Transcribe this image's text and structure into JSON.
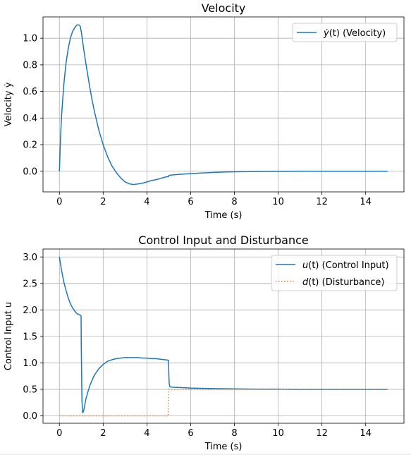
{
  "chart_data": [
    {
      "type": "line",
      "title": "Velocity",
      "xlabel": "Time (s)",
      "ylabel": "Velocity ẏ",
      "xlim": [
        -0.75,
        15.75
      ],
      "ylim": [
        -0.155,
        1.16
      ],
      "xticks": [
        0,
        2,
        4,
        6,
        8,
        10,
        12,
        14
      ],
      "yticks": [
        0.0,
        0.2,
        0.4,
        0.6,
        0.8,
        1.0
      ],
      "ytick_labels": [
        "0.0",
        "0.2",
        "0.4",
        "0.6",
        "0.8",
        "1.0"
      ],
      "grid": true,
      "legend_position": "top-right",
      "series": [
        {
          "name": "ẏ(t) (Velocity)",
          "label_main": "ẏ",
          "label_arg": "(t)",
          "label_rest": " (Velocity)",
          "color": "#1f77b4",
          "style": "solid",
          "x": [
            0,
            0.05,
            0.1,
            0.2,
            0.3,
            0.4,
            0.5,
            0.6,
            0.7,
            0.8,
            0.9,
            0.95,
            1.0,
            1.1,
            1.2,
            1.3,
            1.4,
            1.5,
            1.6,
            1.7,
            1.8,
            2.0,
            2.2,
            2.4,
            2.6,
            2.8,
            3.0,
            3.2,
            3.4,
            3.6,
            3.8,
            4.0,
            4.2,
            4.5,
            4.8,
            4.99,
            5.0,
            5.05,
            5.2,
            5.5,
            6.0,
            6.5,
            7.0,
            7.5,
            8.0,
            9.0,
            10.0,
            11.0,
            12.0,
            13.0,
            14.0,
            15.0
          ],
          "y": [
            0,
            0.25,
            0.42,
            0.65,
            0.81,
            0.92,
            1.0,
            1.05,
            1.08,
            1.1,
            1.1,
            1.09,
            1.05,
            0.93,
            0.82,
            0.72,
            0.62,
            0.53,
            0.45,
            0.38,
            0.31,
            0.2,
            0.11,
            0.04,
            -0.01,
            -0.05,
            -0.08,
            -0.095,
            -0.1,
            -0.095,
            -0.09,
            -0.08,
            -0.07,
            -0.06,
            -0.045,
            -0.04,
            -0.032,
            -0.03,
            -0.027,
            -0.023,
            -0.018,
            -0.013,
            -0.009,
            -0.006,
            -0.004,
            -0.002,
            -0.001,
            0,
            0,
            0,
            0,
            0
          ]
        }
      ]
    },
    {
      "type": "line",
      "title": "Control Input and Disturbance",
      "xlabel": "Time (s)",
      "ylabel": "Control Input u",
      "xlim": [
        -0.75,
        15.75
      ],
      "ylim": [
        -0.14,
        3.15
      ],
      "xticks": [
        0,
        2,
        4,
        6,
        8,
        10,
        12,
        14
      ],
      "yticks": [
        0.0,
        0.5,
        1.0,
        1.5,
        2.0,
        2.5,
        3.0
      ],
      "ytick_labels": [
        "0.0",
        "0.5",
        "1.0",
        "1.5",
        "2.0",
        "2.5",
        "3.0"
      ],
      "grid": true,
      "legend_position": "top-right",
      "series": [
        {
          "name": "u(t) (Control Input)",
          "label_main": "u",
          "label_arg": "(t)",
          "label_rest": " (Control Input)",
          "color": "#1f77b4",
          "style": "solid",
          "x": [
            0,
            0.1,
            0.2,
            0.3,
            0.4,
            0.5,
            0.6,
            0.7,
            0.8,
            0.9,
            0.95,
            0.99,
            1.0,
            1.03,
            1.06,
            1.1,
            1.15,
            1.2,
            1.3,
            1.4,
            1.5,
            1.6,
            1.8,
            2.0,
            2.2,
            2.4,
            2.6,
            2.8,
            3.0,
            3.2,
            3.4,
            3.6,
            3.8,
            4.0,
            4.2,
            4.4,
            4.6,
            4.8,
            4.99,
            5.0,
            5.02,
            5.05,
            5.2,
            5.5,
            6.0,
            6.5,
            7.0,
            8.0,
            9.0,
            10.0,
            11.0,
            12.0,
            13.0,
            14.0,
            15.0
          ],
          "y": [
            3.0,
            2.74,
            2.53,
            2.37,
            2.23,
            2.12,
            2.04,
            1.98,
            1.93,
            1.91,
            1.9,
            1.89,
            1.3,
            0.3,
            0.06,
            0.08,
            0.18,
            0.3,
            0.45,
            0.58,
            0.68,
            0.77,
            0.89,
            0.97,
            1.03,
            1.06,
            1.08,
            1.09,
            1.1,
            1.1,
            1.1,
            1.1,
            1.09,
            1.09,
            1.08,
            1.08,
            1.07,
            1.06,
            1.05,
            0.8,
            0.6,
            0.55,
            0.54,
            0.535,
            0.525,
            0.52,
            0.515,
            0.51,
            0.505,
            0.505,
            0.5,
            0.5,
            0.5,
            0.5,
            0.5
          ]
        },
        {
          "name": "d(t) (Disturbance)",
          "label_main": "d",
          "label_arg": "(t)",
          "label_rest": " (Disturbance)",
          "color": "#ff7f0e",
          "style": "dotted",
          "x": [
            0,
            4.99,
            5.0,
            15.0
          ],
          "y": [
            0,
            0,
            0.5,
            0.5
          ]
        }
      ]
    }
  ]
}
